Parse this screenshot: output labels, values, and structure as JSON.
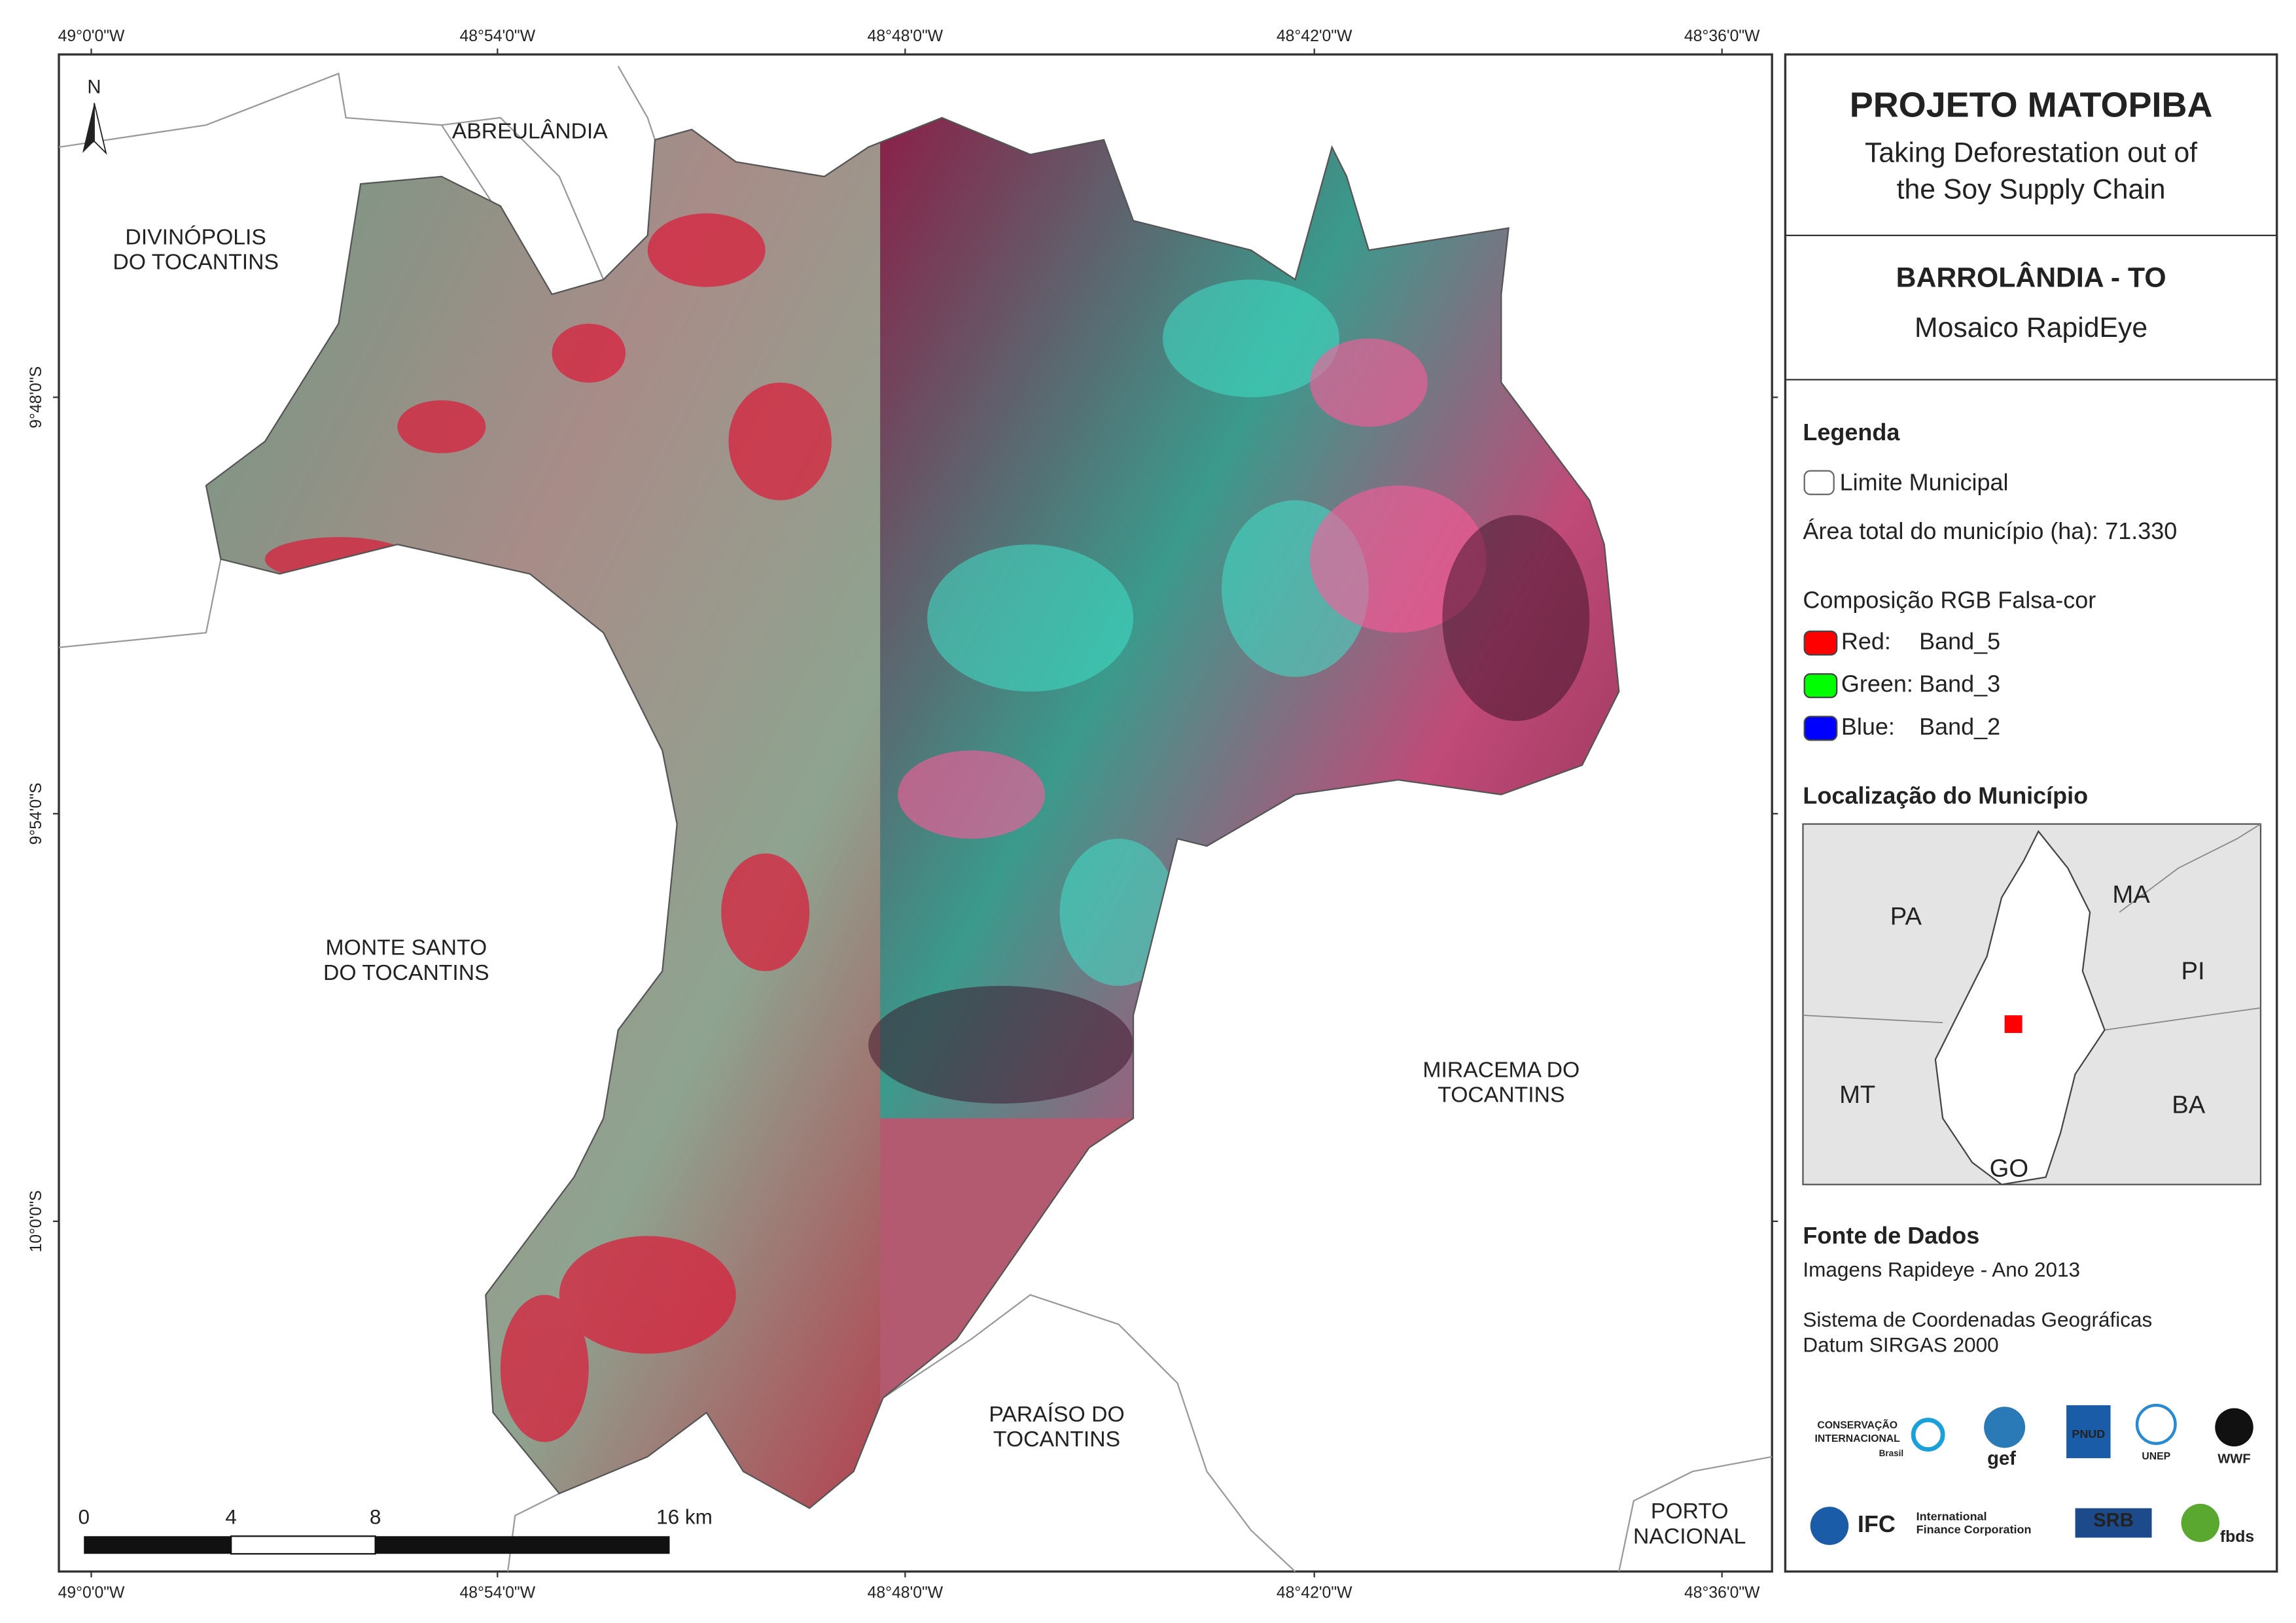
{
  "map": {
    "north": "N",
    "graticule": {
      "lon": [
        "49°0'0\"W",
        "48°54'0\"W",
        "48°48'0\"W",
        "48°42'0\"W",
        "48°36'0\"W"
      ],
      "lat": [
        "9°48'0\"S",
        "9°54'0\"S",
        "10°0'0\"S"
      ]
    },
    "places": [
      {
        "lines": [
          "ABREULÂNDIA"
        ]
      },
      {
        "lines": [
          "DIVINÓPOLIS",
          "DO TOCANTINS"
        ]
      },
      {
        "lines": [
          "MONTE SANTO",
          "DO TOCANTINS"
        ]
      },
      {
        "lines": [
          "MIRACEMA DO",
          "TOCANTINS"
        ]
      },
      {
        "lines": [
          "PARAÍSO DO",
          "TOCANTINS"
        ]
      },
      {
        "lines": [
          "PORTO",
          "NACIONAL"
        ]
      }
    ],
    "scale_bar": [
      "0",
      "4",
      "8",
      "16 km"
    ]
  },
  "panel": {
    "title": "PROJETO MATOPIBA",
    "subtitle": [
      "Taking Deforestation out of",
      "the Soy Supply Chain"
    ],
    "municipality": "BARROLÂNDIA - TO",
    "product": "Mosaico RapidEye",
    "legend": {
      "heading": "Legenda",
      "boundary": "Limite Municipal",
      "area": "Área total do município (ha): 71.330",
      "composition": "Composição RGB Falsa-cor",
      "bands": [
        {
          "channel": "Red:",
          "band": "Band_5",
          "color": "#ff0000"
        },
        {
          "channel": "Green:",
          "band": "Band_3",
          "color": "#00ff00"
        },
        {
          "channel": "Blue:",
          "band": "Band_2",
          "color": "#0000ff"
        }
      ]
    },
    "location": {
      "heading": "Localização do Município",
      "states": [
        "PA",
        "MA",
        "PI",
        "MT",
        "BA",
        "GO"
      ]
    },
    "source": {
      "heading": "Fonte de Dados",
      "lines": [
        "Imagens Rapideye - Ano 2013",
        "Sistema de Coordenadas Geográficas",
        "Datum SIRGAS 2000"
      ]
    },
    "logos": [
      "CONSERVAÇÃO",
      "INTERNACIONAL",
      "Brasil",
      "gef",
      "PNUD",
      "UNEP",
      "WWF",
      "IFC",
      "International",
      "Finance Corporation",
      "SRB",
      "fbds"
    ]
  }
}
